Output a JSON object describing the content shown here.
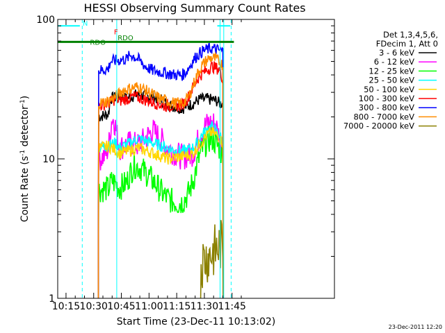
{
  "chart_data": {
    "type": "line",
    "title": "HESSI Observing Summary Count Rates",
    "xlabel": "Start Time (23-Dec-11 10:13:02)",
    "ylabel_main": "Count Rate (s",
    "ylabel_sup1": "-1",
    "ylabel_mid": " detector",
    "ylabel_sup2": "-1",
    "ylabel_end": ")",
    "y_scale": "log",
    "ylim": [
      1,
      100
    ],
    "xlim_minutes": [
      10.5,
      160.5
    ],
    "x_ticks": [
      {
        "label": "10:15",
        "minute": 15
      },
      {
        "label": "10:30",
        "minute": 30
      },
      {
        "label": "10:45",
        "minute": 45
      },
      {
        "label": "11:00",
        "minute": 60
      },
      {
        "label": "11:15",
        "minute": 75
      },
      {
        "label": "11:30",
        "minute": 90
      },
      {
        "label": "11:45",
        "minute": 105
      }
    ],
    "y_ticks": [
      {
        "label": "1",
        "value": 1
      },
      {
        "label": "10",
        "value": 10
      },
      {
        "label": "100",
        "value": 100
      }
    ],
    "legend_header": [
      "Det 1,3,4,5,6,",
      "FDecim 1, Att 0"
    ],
    "series": [
      {
        "name": "3 - 6 keV",
        "color": "#000000",
        "points": [
          [
            32.5,
            1
          ],
          [
            32.7,
            20
          ],
          [
            38,
            21
          ],
          [
            39,
            27
          ],
          [
            44,
            28
          ],
          [
            48,
            27
          ],
          [
            50,
            28
          ],
          [
            54,
            29
          ],
          [
            60,
            28
          ],
          [
            65,
            27
          ],
          [
            72,
            24
          ],
          [
            78,
            23
          ],
          [
            81,
            24
          ],
          [
            84,
            25
          ],
          [
            86,
            26
          ],
          [
            88,
            27
          ],
          [
            90,
            26.5
          ],
          [
            91,
            27
          ],
          [
            97,
            26
          ],
          [
            98,
            25
          ],
          [
            100,
            25
          ],
          [
            100.2,
            1
          ]
        ]
      },
      {
        "name": "6 - 12 keV",
        "color": "#ff00ff",
        "points": [
          [
            32.5,
            1
          ],
          [
            32.7,
            10
          ],
          [
            36,
            10.5
          ],
          [
            38,
            12
          ],
          [
            40,
            20
          ],
          [
            41.5,
            18
          ],
          [
            43,
            14
          ],
          [
            44,
            12
          ],
          [
            50,
            13
          ],
          [
            54,
            12.5
          ],
          [
            58,
            14
          ],
          [
            62,
            16
          ],
          [
            66,
            14
          ],
          [
            70,
            12
          ],
          [
            74,
            11
          ],
          [
            78,
            10.3
          ],
          [
            81,
            10.5
          ],
          [
            84,
            11
          ],
          [
            86,
            13
          ],
          [
            88,
            15
          ],
          [
            90,
            17
          ],
          [
            92,
            18
          ],
          [
            94,
            18
          ],
          [
            96,
            18
          ],
          [
            97,
            16
          ],
          [
            98,
            14.5
          ],
          [
            99,
            13
          ],
          [
            100,
            12
          ],
          [
            100.2,
            1
          ]
        ]
      },
      {
        "name": "12 - 25 keV",
        "color": "#00ff00",
        "points": [
          [
            32.5,
            1
          ],
          [
            32.7,
            6
          ],
          [
            38,
            6.1
          ],
          [
            40,
            7
          ],
          [
            44,
            6.2
          ],
          [
            48,
            6.8
          ],
          [
            50,
            8
          ],
          [
            52,
            9
          ],
          [
            56,
            8.5
          ],
          [
            60,
            7.5
          ],
          [
            64,
            6.5
          ],
          [
            68,
            5.5
          ],
          [
            72,
            5
          ],
          [
            76,
            4.8
          ],
          [
            78,
            4.9
          ],
          [
            81,
            5.5
          ],
          [
            84,
            7
          ],
          [
            86,
            9
          ],
          [
            88,
            11
          ],
          [
            90,
            12.5
          ],
          [
            92,
            13.5
          ],
          [
            94,
            14
          ],
          [
            96,
            13
          ],
          [
            98,
            12
          ],
          [
            99,
            11
          ],
          [
            100,
            10.5
          ],
          [
            100.2,
            1
          ]
        ]
      },
      {
        "name": "25 - 50 keV",
        "color": "#00ffff",
        "points": [
          [
            32.5,
            1
          ],
          [
            32.7,
            12
          ],
          [
            38,
            12.5
          ],
          [
            42,
            13
          ],
          [
            44,
            12
          ],
          [
            50,
            13
          ],
          [
            54,
            14
          ],
          [
            58,
            13.5
          ],
          [
            62,
            13
          ],
          [
            66,
            12.5
          ],
          [
            70,
            12
          ],
          [
            74,
            11.5
          ],
          [
            78,
            11.3
          ],
          [
            81,
            11.6
          ],
          [
            84,
            12
          ],
          [
            86,
            13
          ],
          [
            88,
            14.5
          ],
          [
            90,
            15.5
          ],
          [
            92,
            16.5
          ],
          [
            94,
            17
          ],
          [
            96,
            16
          ],
          [
            98,
            15
          ],
          [
            99,
            14
          ],
          [
            100,
            13.5
          ],
          [
            100.2,
            1
          ]
        ]
      },
      {
        "name": "50 - 100 keV",
        "color": "#ffd700",
        "points": [
          [
            32.5,
            1
          ],
          [
            32.7,
            12
          ],
          [
            38,
            12.3
          ],
          [
            42,
            11.5
          ],
          [
            44,
            11
          ],
          [
            50,
            11.5
          ],
          [
            54,
            12
          ],
          [
            58,
            11.5
          ],
          [
            62,
            11
          ],
          [
            66,
            10.5
          ],
          [
            70,
            10
          ],
          [
            74,
            10.2
          ],
          [
            78,
            10.4
          ],
          [
            81,
            10.6
          ],
          [
            84,
            11
          ],
          [
            86,
            12
          ],
          [
            88,
            13
          ],
          [
            90,
            14
          ],
          [
            92,
            15
          ],
          [
            94,
            15.5
          ],
          [
            96,
            15
          ],
          [
            98,
            14.5
          ],
          [
            99,
            13.5
          ],
          [
            100,
            13
          ],
          [
            100.2,
            1
          ]
        ]
      },
      {
        "name": "100 - 300 keV",
        "color": "#ff0000",
        "points": [
          [
            32.5,
            1
          ],
          [
            32.7,
            24
          ],
          [
            38,
            25
          ],
          [
            42,
            27
          ],
          [
            44,
            26
          ],
          [
            48,
            27
          ],
          [
            52,
            28
          ],
          [
            56,
            27
          ],
          [
            60,
            26
          ],
          [
            64,
            25
          ],
          [
            68,
            24
          ],
          [
            72,
            24
          ],
          [
            76,
            24
          ],
          [
            78,
            24.5
          ],
          [
            80,
            26
          ],
          [
            82,
            29
          ],
          [
            84,
            33
          ],
          [
            86,
            37
          ],
          [
            88,
            40
          ],
          [
            90,
            42
          ],
          [
            92,
            44
          ],
          [
            94,
            46
          ],
          [
            96,
            45
          ],
          [
            98,
            44
          ],
          [
            99,
            40
          ],
          [
            100,
            38
          ],
          [
            100.2,
            1
          ]
        ]
      },
      {
        "name": "300 - 800 keV",
        "color": "#0000ff",
        "points": [
          [
            32.5,
            1
          ],
          [
            32.7,
            43
          ],
          [
            38,
            44
          ],
          [
            39,
            50
          ],
          [
            44,
            51
          ],
          [
            48,
            52
          ],
          [
            50,
            56
          ],
          [
            54,
            52
          ],
          [
            58,
            46
          ],
          [
            62,
            43
          ],
          [
            66,
            42
          ],
          [
            70,
            41
          ],
          [
            74,
            40
          ],
          [
            78,
            40
          ],
          [
            80,
            42
          ],
          [
            82,
            46
          ],
          [
            84,
            51
          ],
          [
            86,
            55
          ],
          [
            88,
            58
          ],
          [
            90,
            60
          ],
          [
            92,
            61
          ],
          [
            94,
            62
          ],
          [
            96,
            61
          ],
          [
            98,
            60
          ],
          [
            100,
            59
          ],
          [
            100.2,
            1
          ]
        ]
      },
      {
        "name": "800 - 7000 keV",
        "color": "#ff8c00",
        "points": [
          [
            32.5,
            1
          ],
          [
            32.7,
            25
          ],
          [
            38,
            26
          ],
          [
            42,
            28
          ],
          [
            46,
            31
          ],
          [
            50,
            32
          ],
          [
            54,
            33
          ],
          [
            58,
            31
          ],
          [
            62,
            29
          ],
          [
            66,
            27
          ],
          [
            70,
            26
          ],
          [
            74,
            25
          ],
          [
            78,
            25
          ],
          [
            80,
            26
          ],
          [
            82,
            29
          ],
          [
            84,
            34
          ],
          [
            86,
            40
          ],
          [
            88,
            45
          ],
          [
            90,
            49
          ],
          [
            92,
            52
          ],
          [
            94,
            53
          ],
          [
            96,
            52
          ],
          [
            98,
            50
          ],
          [
            100,
            47
          ],
          [
            100.2,
            1
          ]
        ]
      },
      {
        "name": "7000 - 20000 keV",
        "color": "#8b8000",
        "points": [
          [
            88,
            1
          ],
          [
            88.2,
            1.8
          ],
          [
            90,
            1.9
          ],
          [
            92,
            2.0
          ],
          [
            94,
            2.1
          ],
          [
            96,
            2.2
          ],
          [
            98,
            2.3
          ],
          [
            100,
            2.5
          ],
          [
            100.2,
            1
          ]
        ]
      }
    ],
    "top_segments": [
      {
        "color": "#00ffff",
        "x": [
          10.5,
          22.5
        ],
        "y": 90
      },
      {
        "color": "#00ffff",
        "x": [
          97,
          104
        ],
        "y": 90
      }
    ],
    "markers": [
      {
        "label": "N",
        "color": "#00ffff",
        "minute": 24,
        "y": 90
      },
      {
        "label": "F",
        "color": "#ff0000",
        "minute": 41,
        "y": 78
      },
      {
        "label": "RDO",
        "color": "#008000",
        "minute": 43,
        "y": 71
      },
      {
        "label": "RDO",
        "color": "#008000",
        "minute": 28,
        "y": 66
      }
    ],
    "green_line": {
      "color": "#008000",
      "x": [
        10.5,
        106
      ],
      "y": 69
    }
  },
  "timestamp": "23-Dec-2011 12:20"
}
